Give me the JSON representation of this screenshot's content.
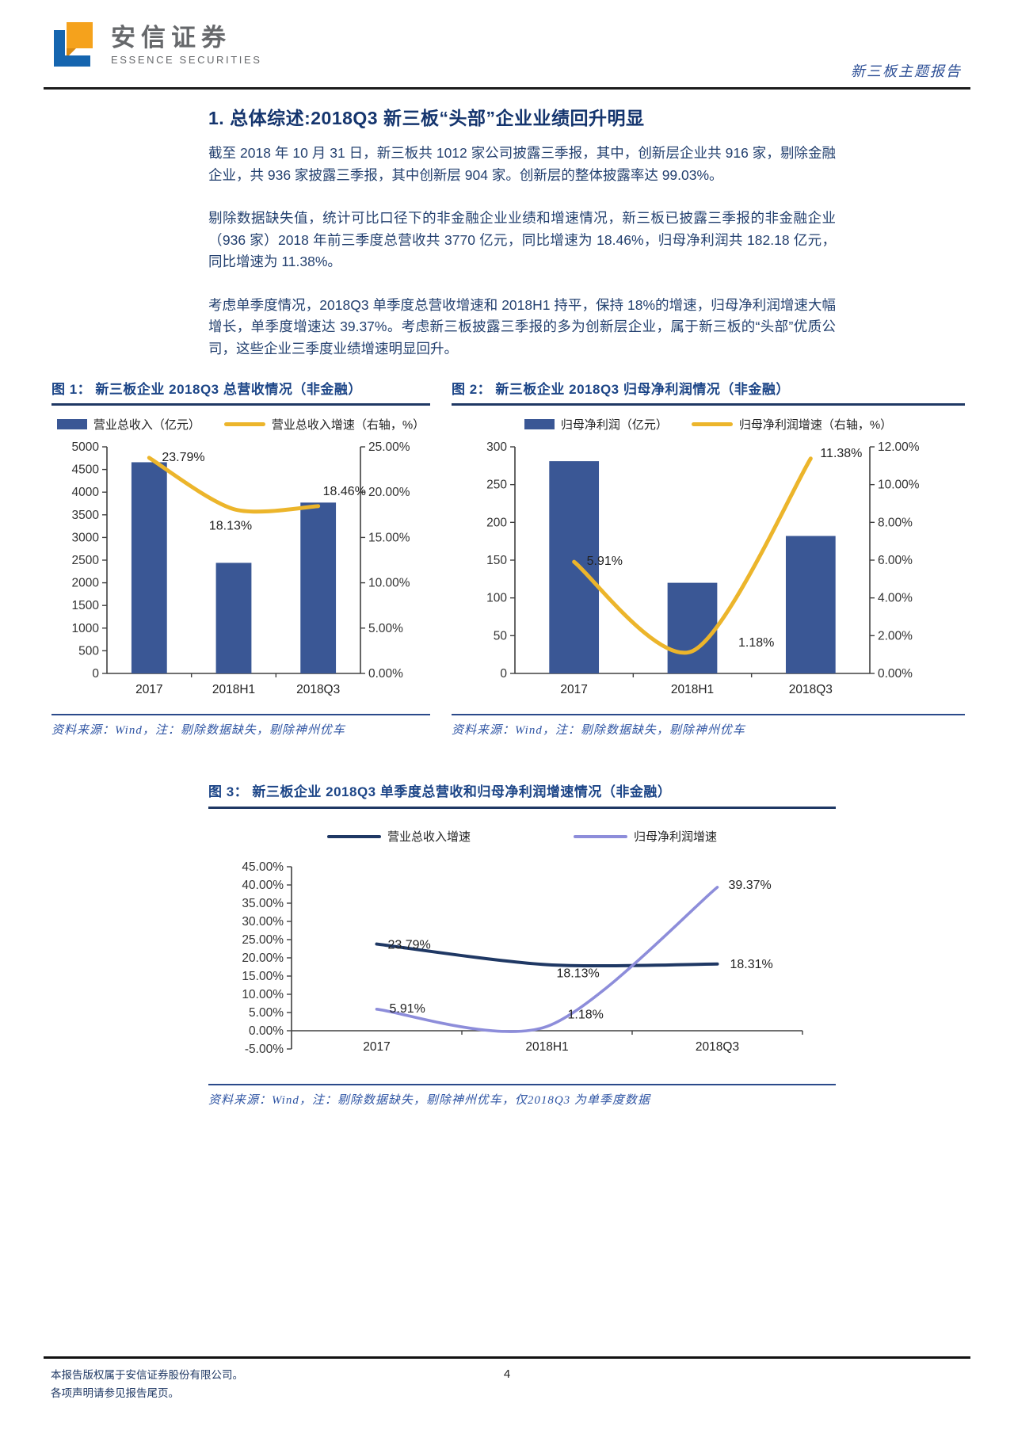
{
  "header": {
    "brand_cn": "安信证券",
    "brand_en": "ESSENCE SECURITIES",
    "report_type": "新三板主题报告"
  },
  "section": {
    "title": "1. 总体综述:2018Q3 新三板“头部”企业业绩回升明显",
    "paragraphs": [
      "截至 2018 年 10 月 31 日，新三板共 1012 家公司披露三季报，其中，创新层企业共 916 家，剔除金融企业，共 936 家披露三季报，其中创新层 904 家。创新层的整体披露率达 99.03%。",
      "剔除数据缺失值，统计可比口径下的非金融企业业绩和增速情况，新三板已披露三季报的非金融企业（936 家）2018 年前三季度总营收共 3770 亿元，同比增速为 18.46%，归母净利润共 182.18 亿元，同比增速为 11.38%。",
      "考虑单季度情况，2018Q3 单季度总营收增速和 2018H1 持平，保持 18%的增速，归母净利润增速大幅增长，单季度增速达 39.37%。考虑新三板披露三季报的多为创新层企业，属于新三板的“头部”优质公司，这些企业三季度业绩增速明显回升。"
    ]
  },
  "figures": [
    {
      "source": "资料来源：Wind，注：剔除数据缺失，剔除神州优车"
    },
    {
      "source": "资料来源：Wind，注：剔除数据缺失，剔除神州优车"
    },
    {
      "source": "资料来源：Wind，注：剔除数据缺失，剔除神州优车，仅2018Q3 为单季度数据"
    }
  ],
  "chart_data": [
    {
      "type": "bar",
      "title": "图 1：  新三板企业 2018Q3 总营收情况（非金融）",
      "categories": [
        "2017",
        "2018H1",
        "2018Q3"
      ],
      "series": [
        {
          "name": "营业总收入（亿元）",
          "type": "bar",
          "axis": "left",
          "values": [
            4660,
            2440,
            3770
          ],
          "color": "#3A5795"
        },
        {
          "name": "营业总收入增速（右轴，%）",
          "type": "line",
          "axis": "right",
          "values": [
            23.79,
            18.13,
            18.46
          ],
          "color": "#ECB52B"
        }
      ],
      "left_axis": {
        "min": 0,
        "max": 5000,
        "step": 500
      },
      "right_axis": {
        "min": 0,
        "max": 25,
        "step": 5,
        "format": "percent"
      },
      "grid": false,
      "legend_position": "top"
    },
    {
      "type": "bar",
      "title": "图 2：  新三板企业 2018Q3 归母净利润情况（非金融）",
      "categories": [
        "2017",
        "2018H1",
        "2018Q3"
      ],
      "series": [
        {
          "name": "归母净利润（亿元）",
          "type": "bar",
          "axis": "left",
          "values": [
            281,
            120,
            182
          ],
          "color": "#3A5795"
        },
        {
          "name": "归母净利润增速（右轴，%）",
          "type": "line",
          "axis": "right",
          "values": [
            5.91,
            1.18,
            11.38
          ],
          "color": "#ECB52B"
        }
      ],
      "left_axis": {
        "min": 0,
        "max": 300,
        "step": 50
      },
      "right_axis": {
        "min": 0,
        "max": 12,
        "step": 2,
        "format": "percent"
      },
      "grid": false,
      "legend_position": "top"
    },
    {
      "type": "line",
      "title": "图 3：  新三板企业 2018Q3 单季度总营收和归母净利润增速情况（非金融）",
      "categories": [
        "2017",
        "2018H1",
        "2018Q3"
      ],
      "series": [
        {
          "name": "营业总收入增速",
          "values": [
            23.79,
            18.13,
            18.31
          ],
          "color": "#1F3864"
        },
        {
          "name": "归母净利润增速",
          "values": [
            5.91,
            1.18,
            39.37
          ],
          "color": "#8D8DDA"
        }
      ],
      "y_axis": {
        "min": -5,
        "max": 45,
        "step": 5,
        "format": "percent"
      },
      "grid": false,
      "legend_position": "top"
    }
  ],
  "footer": {
    "line1": "本报告版权属于安信证券股份有限公司。",
    "line2": "各项声明请参见报告尾页。",
    "page_number": "4"
  }
}
